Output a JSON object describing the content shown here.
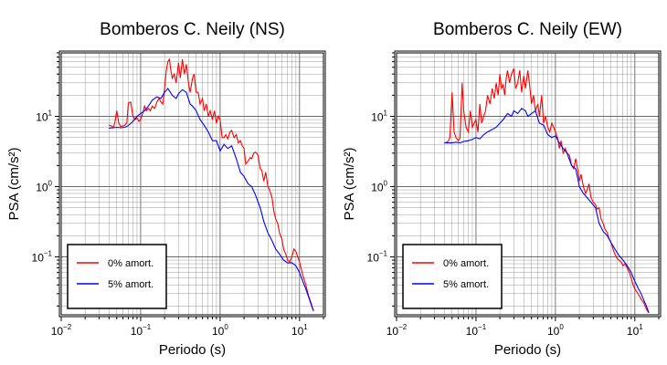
{
  "chart_data": [
    {
      "type": "line",
      "title": "Bomberos C. Neily (NS)",
      "xlabel": "Periodo (s)",
      "ylabel": "PSA (cm/s²)",
      "xscale": "log",
      "yscale": "log",
      "xlim": [
        0.01,
        20
      ],
      "ylim": [
        0.015,
        80
      ],
      "grid": true,
      "legend_position": "bottom-left",
      "xticks": [
        {
          "b": "10",
          "e": "−2"
        },
        {
          "b": "10",
          "e": "−1"
        },
        {
          "b": "10",
          "e": "0"
        },
        {
          "b": "10",
          "e": "1"
        }
      ],
      "yticks": [
        {
          "b": "10",
          "e": "−1"
        },
        {
          "b": "10",
          "e": "0"
        },
        {
          "b": "10",
          "e": "1"
        }
      ],
      "series": [
        {
          "name": "0% amort.",
          "color": "#ff0000",
          "x": [
            0.04,
            0.043,
            0.045,
            0.047,
            0.05,
            0.053,
            0.056,
            0.06,
            0.063,
            0.067,
            0.07,
            0.075,
            0.08,
            0.085,
            0.09,
            0.095,
            0.1,
            0.106,
            0.112,
            0.118,
            0.125,
            0.132,
            0.14,
            0.15,
            0.16,
            0.17,
            0.18,
            0.19,
            0.2,
            0.21,
            0.22,
            0.23,
            0.24,
            0.25,
            0.265,
            0.28,
            0.3,
            0.315,
            0.335,
            0.355,
            0.375,
            0.4,
            0.42,
            0.45,
            0.47,
            0.5,
            0.53,
            0.56,
            0.6,
            0.63,
            0.67,
            0.71,
            0.75,
            0.8,
            0.85,
            0.9,
            0.95,
            1.0,
            1.06,
            1.12,
            1.18,
            1.25,
            1.33,
            1.4,
            1.5,
            1.6,
            1.7,
            1.8,
            1.9,
            2.0,
            2.1,
            2.25,
            2.4,
            2.5,
            2.65,
            2.8,
            3.0,
            3.2,
            3.35,
            3.55,
            3.75,
            4.0,
            4.2,
            4.5,
            4.75,
            5.0,
            5.3,
            5.6,
            6.0,
            6.3,
            6.7,
            7.1,
            7.5,
            8.0,
            8.5,
            9.0,
            9.5,
            10,
            11,
            12,
            13,
            14,
            15
          ],
          "y": [
            7.5,
            7.3,
            7.0,
            7.8,
            12,
            8,
            7.2,
            7.3,
            7.5,
            8,
            15.5,
            16,
            10,
            9,
            9.5,
            8.5,
            9,
            11,
            14,
            12,
            13,
            12,
            14,
            13,
            16,
            18,
            16,
            15,
            25,
            45,
            60,
            65,
            45,
            35,
            40,
            30,
            58,
            35,
            65,
            40,
            55,
            30,
            22,
            35,
            40,
            22,
            22,
            15,
            18,
            12,
            15,
            10,
            12,
            9,
            12,
            8,
            10,
            9,
            5,
            5,
            5.5,
            4.8,
            6,
            6.3,
            5,
            5.5,
            4.2,
            4.5,
            3.8,
            3.5,
            2.1,
            2.3,
            2.6,
            2.5,
            3.0,
            3.1,
            2.8,
            1.8,
            1.7,
            1.2,
            1.6,
            1.0,
            0.9,
            0.7,
            0.45,
            0.35,
            0.3,
            0.22,
            0.18,
            0.13,
            0.11,
            0.09,
            0.085,
            0.1,
            0.13,
            0.12,
            0.1,
            0.085,
            0.055,
            0.04,
            0.028,
            0.022,
            0.017
          ]
        },
        {
          "name": "5% amort.",
          "color": "#0000ff",
          "x": [
            0.04,
            0.045,
            0.05,
            0.056,
            0.063,
            0.07,
            0.08,
            0.09,
            0.1,
            0.112,
            0.125,
            0.14,
            0.16,
            0.18,
            0.2,
            0.22,
            0.25,
            0.28,
            0.3,
            0.335,
            0.375,
            0.42,
            0.45,
            0.5,
            0.56,
            0.63,
            0.71,
            0.8,
            0.9,
            1.0,
            1.12,
            1.25,
            1.4,
            1.6,
            1.8,
            2.0,
            2.25,
            2.5,
            2.8,
            3.2,
            3.55,
            4.0,
            4.5,
            5.0,
            5.6,
            6.3,
            7.1,
            8.0,
            9.0,
            10,
            11,
            12,
            13,
            14,
            15
          ],
          "y": [
            6.8,
            6.9,
            7.0,
            6.9,
            7.0,
            7.4,
            8.5,
            10,
            11,
            12,
            14,
            17,
            19,
            18,
            22,
            25,
            20,
            18,
            21,
            24,
            22,
            15,
            14,
            12,
            9,
            7.5,
            6,
            4.5,
            4.5,
            3.2,
            4,
            3.5,
            3.8,
            2.5,
            1.6,
            1.4,
            1.1,
            1.0,
            0.75,
            0.5,
            0.32,
            0.22,
            0.17,
            0.13,
            0.11,
            0.09,
            0.082,
            0.083,
            0.075,
            0.06,
            0.045,
            0.035,
            0.027,
            0.021,
            0.017
          ]
        }
      ]
    },
    {
      "type": "line",
      "title": "Bomberos C. Neily (EW)",
      "xlabel": "Periodo (s)",
      "ylabel": "PSA (cm/s²)",
      "xscale": "log",
      "yscale": "log",
      "xlim": [
        0.01,
        20
      ],
      "ylim": [
        0.015,
        80
      ],
      "grid": true,
      "legend_position": "bottom-left",
      "xticks": [
        {
          "b": "10",
          "e": "−2"
        },
        {
          "b": "10",
          "e": "−1"
        },
        {
          "b": "10",
          "e": "0"
        },
        {
          "b": "10",
          "e": "1"
        }
      ],
      "yticks": [
        {
          "b": "10",
          "e": "−1"
        },
        {
          "b": "10",
          "e": "0"
        },
        {
          "b": "10",
          "e": "1"
        }
      ],
      "series": [
        {
          "name": "0% amort.",
          "color": "#ff0000",
          "x": [
            0.04,
            0.043,
            0.045,
            0.047,
            0.05,
            0.053,
            0.056,
            0.06,
            0.063,
            0.067,
            0.07,
            0.075,
            0.08,
            0.085,
            0.09,
            0.095,
            0.1,
            0.106,
            0.112,
            0.118,
            0.125,
            0.132,
            0.14,
            0.15,
            0.16,
            0.17,
            0.18,
            0.19,
            0.2,
            0.21,
            0.22,
            0.23,
            0.24,
            0.25,
            0.265,
            0.28,
            0.3,
            0.315,
            0.335,
            0.355,
            0.375,
            0.4,
            0.42,
            0.45,
            0.47,
            0.5,
            0.53,
            0.56,
            0.6,
            0.63,
            0.67,
            0.71,
            0.75,
            0.8,
            0.85,
            0.9,
            0.95,
            1.0,
            1.06,
            1.12,
            1.18,
            1.25,
            1.33,
            1.4,
            1.5,
            1.6,
            1.7,
            1.8,
            1.9,
            2.0,
            2.1,
            2.25,
            2.4,
            2.5,
            2.65,
            2.8,
            3.0,
            3.2,
            3.35,
            3.55,
            3.75,
            4.0,
            4.2,
            4.5,
            4.75,
            5.0,
            5.3,
            5.6,
            6.0,
            6.3,
            6.7,
            7.1,
            7.5,
            8.0,
            8.5,
            9.0,
            9.5,
            10,
            11,
            12,
            13,
            14,
            15
          ],
          "y": [
            4.2,
            4.3,
            4.5,
            5,
            22,
            6,
            5,
            4.5,
            5,
            30,
            12,
            7,
            6,
            12,
            7,
            8,
            9,
            6,
            15,
            8,
            10,
            12,
            20,
            15,
            25,
            18,
            30,
            20,
            40,
            25,
            28,
            20,
            35,
            45,
            30,
            40,
            48,
            25,
            30,
            45,
            22,
            38,
            25,
            45,
            30,
            15,
            20,
            12,
            15,
            10,
            20,
            8,
            10,
            7,
            6,
            8,
            7,
            6,
            5,
            3.5,
            4.5,
            3,
            3.5,
            3,
            2.8,
            2,
            1.8,
            2.5,
            1.8,
            1.2,
            1.5,
            1,
            0.8,
            0.9,
            1.1,
            0.7,
            0.6,
            0.55,
            0.48,
            0.5,
            0.35,
            0.3,
            0.25,
            0.22,
            0.18,
            0.16,
            0.13,
            0.11,
            0.095,
            0.09,
            0.085,
            0.075,
            0.08,
            0.07,
            0.06,
            0.05,
            0.04,
            0.035,
            0.03,
            0.025,
            0.022,
            0.018,
            0.016
          ]
        },
        {
          "name": "5% amort.",
          "color": "#0000ff",
          "x": [
            0.04,
            0.045,
            0.05,
            0.056,
            0.063,
            0.07,
            0.08,
            0.09,
            0.1,
            0.112,
            0.125,
            0.14,
            0.16,
            0.18,
            0.2,
            0.22,
            0.25,
            0.28,
            0.3,
            0.335,
            0.375,
            0.42,
            0.45,
            0.5,
            0.56,
            0.63,
            0.71,
            0.8,
            0.9,
            1.0,
            1.12,
            1.25,
            1.4,
            1.6,
            1.8,
            2.0,
            2.25,
            2.5,
            2.8,
            3.2,
            3.55,
            4.0,
            4.5,
            5.0,
            5.6,
            6.3,
            7.1,
            8.0,
            9.0,
            10,
            11,
            12,
            13,
            14,
            15
          ],
          "y": [
            4.2,
            4.2,
            4.2,
            4.3,
            4.2,
            4.4,
            4.5,
            4.7,
            5,
            4.8,
            5.5,
            6,
            6.5,
            7,
            8,
            9,
            11,
            10,
            12,
            11,
            13,
            12,
            10,
            11,
            12,
            8,
            7.5,
            5.5,
            5,
            5.3,
            4.2,
            3.5,
            3,
            2,
            1.8,
            1,
            0.8,
            0.7,
            0.6,
            0.5,
            0.3,
            0.23,
            0.2,
            0.16,
            0.13,
            0.105,
            0.09,
            0.075,
            0.06,
            0.045,
            0.036,
            0.03,
            0.024,
            0.02,
            0.016
          ]
        }
      ]
    }
  ]
}
